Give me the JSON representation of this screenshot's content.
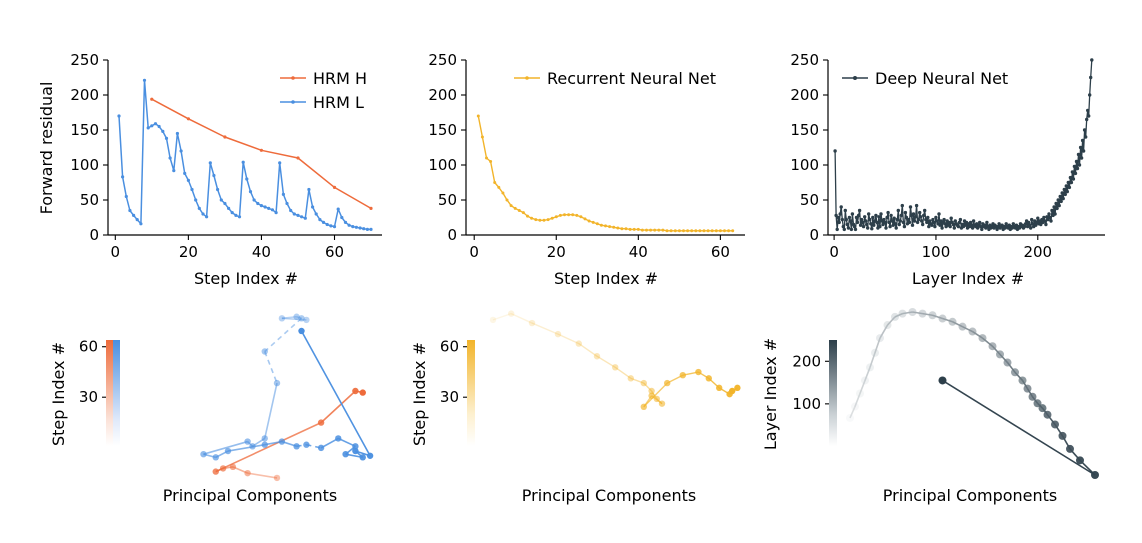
{
  "chart_data": [
    {
      "type": "line",
      "panel": "top-left",
      "xlabel": "Step Index #",
      "ylabel": "Forward residual",
      "xlim": [
        -2,
        73
      ],
      "ylim": [
        0,
        250
      ],
      "xticks": [
        0,
        20,
        40,
        60
      ],
      "yticks": [
        0,
        50,
        100,
        150,
        200,
        250
      ],
      "legend_position": "top-right",
      "series": [
        {
          "name": "HRM H",
          "color": "#ee6b3b",
          "x": [
            10,
            20,
            30,
            40,
            50,
            60,
            70
          ],
          "values": [
            194,
            166,
            140,
            121,
            110,
            68,
            38
          ]
        },
        {
          "name": "HRM L",
          "color": "#4a8fe0",
          "x": [
            1,
            2,
            3,
            4,
            5,
            6,
            7,
            8,
            9,
            10,
            11,
            12,
            13,
            14,
            15,
            16,
            17,
            18,
            19,
            20,
            21,
            22,
            23,
            24,
            25,
            26,
            27,
            28,
            29,
            30,
            31,
            32,
            33,
            34,
            35,
            36,
            37,
            38,
            39,
            40,
            41,
            42,
            43,
            44,
            45,
            46,
            47,
            48,
            49,
            50,
            51,
            52,
            53,
            54,
            55,
            56,
            57,
            58,
            59,
            60,
            61,
            62,
            63,
            64,
            65,
            66,
            67,
            68,
            69,
            70
          ],
          "values": [
            170,
            83,
            55,
            35,
            28,
            22,
            16,
            221,
            153,
            156,
            159,
            155,
            148,
            138,
            110,
            92,
            145,
            120,
            88,
            78,
            65,
            50,
            38,
            30,
            26,
            103,
            85,
            65,
            50,
            45,
            38,
            32,
            28,
            26,
            104,
            80,
            62,
            50,
            45,
            42,
            40,
            38,
            36,
            32,
            103,
            58,
            45,
            35,
            30,
            28,
            26,
            24,
            65,
            40,
            30,
            22,
            18,
            15,
            13,
            12,
            37,
            25,
            18,
            14,
            12,
            11,
            10,
            9,
            8,
            8
          ]
        }
      ]
    },
    {
      "type": "line",
      "panel": "top-middle",
      "xlabel": "Step Index #",
      "ylabel": "",
      "xlim": [
        -2,
        66
      ],
      "ylim": [
        0,
        250
      ],
      "xticks": [
        0,
        20,
        40,
        60
      ],
      "yticks": [
        0,
        50,
        100,
        150,
        200,
        250
      ],
      "legend_position": "top-right",
      "series": [
        {
          "name": "Recurrent Neural Net",
          "color": "#f2b42a",
          "x": [
            1,
            2,
            3,
            4,
            5,
            6,
            7,
            8,
            9,
            10,
            11,
            12,
            13,
            14,
            15,
            16,
            17,
            18,
            19,
            20,
            21,
            22,
            23,
            24,
            25,
            26,
            27,
            28,
            29,
            30,
            31,
            32,
            33,
            34,
            35,
            36,
            37,
            38,
            39,
            40,
            41,
            42,
            43,
            44,
            45,
            46,
            47,
            48,
            49,
            50,
            51,
            52,
            53,
            54,
            55,
            56,
            57,
            58,
            59,
            60,
            61,
            62,
            63
          ],
          "values": [
            170,
            140,
            110,
            105,
            75,
            68,
            60,
            50,
            42,
            38,
            35,
            32,
            27,
            24,
            22,
            21,
            21,
            22,
            24,
            26,
            28,
            29,
            29,
            29,
            28,
            26,
            23,
            20,
            18,
            16,
            14,
            13,
            12,
            11,
            10,
            9,
            9,
            8,
            8,
            8,
            7,
            7,
            7,
            7,
            7,
            7,
            6,
            6,
            6,
            6,
            6,
            6,
            6,
            6,
            6,
            6,
            6,
            6,
            6,
            6,
            6,
            6,
            6
          ]
        }
      ]
    },
    {
      "type": "line",
      "panel": "top-right",
      "xlabel": "Layer Index #",
      "ylabel": "",
      "xlim": [
        -6,
        266
      ],
      "ylim": [
        0,
        250
      ],
      "xticks": [
        0,
        100,
        200
      ],
      "yticks": [
        0,
        50,
        100,
        150,
        200,
        250
      ],
      "legend_position": "top-left",
      "series": [
        {
          "name": "Deep Neural Net",
          "color": "#2d3f4a",
          "x_start": 1,
          "note": "values follow x = 1, 2, 3, ... (one per layer)",
          "values": [
            120,
            28,
            8,
            25,
            18,
            30,
            40,
            22,
            12,
            8,
            35,
            22,
            15,
            10,
            25,
            20,
            8,
            30,
            15,
            12,
            8,
            25,
            18,
            28,
            35,
            14,
            22,
            18,
            12,
            26,
            20,
            15,
            10,
            30,
            22,
            16,
            9,
            25,
            14,
            20,
            28,
            18,
            10,
            26,
            12,
            30,
            20,
            15,
            22,
            18,
            10,
            25,
            32,
            18,
            12,
            28,
            20,
            14,
            24,
            16,
            10,
            22,
            35,
            15,
            20,
            28,
            42,
            18,
            12,
            32,
            25,
            16,
            22,
            18,
            40,
            28,
            14,
            30,
            20,
            26,
            42,
            18,
            22,
            32,
            26,
            20,
            15,
            28,
            35,
            22,
            18,
            25,
            12,
            20,
            16,
            14,
            22,
            18,
            12,
            25,
            20,
            16,
            30,
            14,
            20,
            10,
            18,
            22,
            16,
            12,
            20,
            14,
            18,
            12,
            24,
            18,
            15,
            10,
            20,
            16,
            14,
            12,
            18,
            22,
            10,
            15,
            12,
            20,
            14,
            18,
            10,
            16,
            12,
            18,
            14,
            10,
            20,
            14,
            12,
            16,
            10,
            14,
            18,
            12,
            8,
            16,
            12,
            14,
            10,
            18,
            12,
            8,
            14,
            10,
            12,
            16,
            10,
            14,
            12,
            8,
            12,
            16,
            10,
            12,
            14,
            8,
            12,
            10,
            16,
            12,
            10,
            14,
            8,
            12,
            10,
            16,
            12,
            10,
            14,
            8,
            12,
            10,
            16,
            12,
            14,
            10,
            12,
            16,
            20,
            12,
            18,
            14,
            10,
            22,
            16,
            12,
            20,
            14,
            18,
            24,
            16,
            20,
            15,
            22,
            18,
            25,
            20,
            15,
            26,
            22,
            30,
            25,
            20,
            35,
            28,
            40,
            30,
            45,
            38,
            50,
            42,
            55,
            48,
            60,
            52,
            65,
            58,
            70,
            62,
            75,
            68,
            82,
            75,
            90,
            80,
            98,
            88,
            105,
            95,
            115,
            100,
            125,
            110,
            135,
            120,
            150,
            140,
            165,
            178,
            170,
            200,
            225,
            250
          ]
        }
      ]
    },
    {
      "type": "scatter",
      "panel": "bottom-left",
      "xlabel": "Principal Components",
      "ylabel": "Step Index #",
      "colorbar_ticks": [
        30,
        60
      ],
      "colorbar_range": [
        1,
        64
      ],
      "colorbar_colors": [
        "#4a8fe0",
        "#ee6b3b"
      ],
      "series": [
        {
          "name": "HRM H",
          "color": "#ee6b3b",
          "x": [
            0.6,
            0.48,
            0.42,
            0.38,
            0.35,
            0.78,
            0.92,
            0.95
          ],
          "y": [
            -0.05,
            -0.02,
            0.02,
            0.01,
            -0.01,
            0.3,
            0.5,
            0.49
          ]
        },
        {
          "name": "HRM L",
          "color": "#4a8fe0",
          "x": [
            0.72,
            0.62,
            0.68,
            0.7,
            0.55,
            0.6,
            0.55,
            0.5,
            0.48,
            0.3,
            0.35,
            0.4,
            0.55,
            0.62,
            0.68,
            0.72,
            0.78,
            0.85,
            0.92,
            0.88,
            0.95,
            0.92,
            0.98,
            0.7
          ],
          "y": [
            0.95,
            0.96,
            0.97,
            0.96,
            0.75,
            0.55,
            0.2,
            0.15,
            0.18,
            0.1,
            0.08,
            0.12,
            0.16,
            0.18,
            0.15,
            0.16,
            0.14,
            0.2,
            0.15,
            0.1,
            0.08,
            0.12,
            0.09,
            0.88
          ]
        }
      ]
    },
    {
      "type": "scatter",
      "panel": "bottom-middle",
      "xlabel": "Principal Components",
      "ylabel": "Step Index #",
      "colorbar_ticks": [
        30,
        60
      ],
      "colorbar_range": [
        1,
        64
      ],
      "colorbar_colors": [
        "#fffbe8",
        "#f2b42a"
      ],
      "series": [
        {
          "name": "Recurrent Neural Net",
          "color": "#f2b42a",
          "x": [
            0.05,
            0.12,
            0.2,
            0.3,
            0.38,
            0.45,
            0.52,
            0.58,
            0.63,
            0.66,
            0.68,
            0.7,
            0.66,
            0.63,
            0.72,
            0.78,
            0.84,
            0.88,
            0.92,
            0.96,
            0.99,
            0.97
          ],
          "y": [
            0.95,
            0.99,
            0.93,
            0.86,
            0.8,
            0.72,
            0.65,
            0.58,
            0.55,
            0.5,
            0.45,
            0.42,
            0.47,
            0.4,
            0.55,
            0.6,
            0.62,
            0.58,
            0.52,
            0.48,
            0.52,
            0.5
          ]
        }
      ]
    },
    {
      "type": "scatter",
      "panel": "bottom-right",
      "xlabel": "Principal Components",
      "ylabel": "Layer Index #",
      "colorbar_ticks": [
        100,
        200
      ],
      "colorbar_range": [
        1,
        250
      ],
      "colorbar_colors": [
        "#f4f6f7",
        "#2d3f4a"
      ],
      "series": [
        {
          "name": "Deep Neural Net",
          "color": "#2d3f4a",
          "x": [
            0.02,
            0.04,
            0.06,
            0.08,
            0.1,
            0.12,
            0.14,
            0.17,
            0.2,
            0.23,
            0.27,
            0.31,
            0.35,
            0.39,
            0.43,
            0.47,
            0.51,
            0.55,
            0.59,
            0.62,
            0.65,
            0.68,
            0.71,
            0.73,
            0.75,
            0.77,
            0.79,
            0.81,
            0.84,
            0.87,
            0.9,
            0.94,
            1.0,
            0.39
          ],
          "y": [
            0.35,
            0.42,
            0.5,
            0.58,
            0.66,
            0.75,
            0.84,
            0.92,
            0.97,
            0.99,
            1.0,
            0.99,
            0.98,
            0.96,
            0.94,
            0.91,
            0.88,
            0.84,
            0.79,
            0.74,
            0.69,
            0.63,
            0.58,
            0.53,
            0.48,
            0.44,
            0.41,
            0.37,
            0.31,
            0.24,
            0.16,
            0.09,
            0.0,
            0.58
          ]
        }
      ]
    }
  ]
}
